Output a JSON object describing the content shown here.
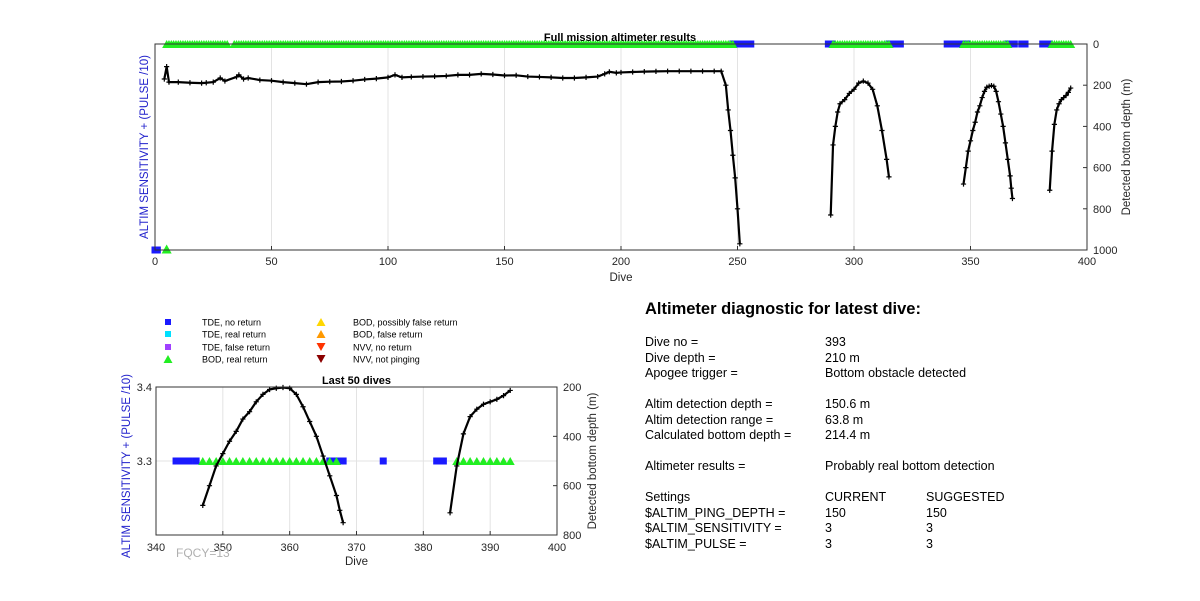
{
  "colors": {
    "tde_no_return": "#1a1aff",
    "tde_real_return": "#00e0ff",
    "tde_false_return": "#a040ff",
    "bod_real_return": "#22ee22",
    "bod_possibly_false_return": "#ffd700",
    "bod_false_return": "#ff9900",
    "nvv_no_return": "#ff3300",
    "nvv_not_pinging": "#8b0000",
    "depth_line": "#000000",
    "left_axis_label": "#2222cc"
  },
  "chart_data": [
    {
      "type": "scatter",
      "title": "Full mission altimeter results",
      "xlabel": "Dive",
      "ylabel_left": "ALTIM SENSITIVITY + (PULSE /10)",
      "ylabel_right": "Detected bottom depth (m)",
      "xlim": [
        0,
        400
      ],
      "ylim_right": [
        0,
        1000
      ],
      "right_axis_reversed": true,
      "x_ticks": [
        0,
        50,
        100,
        150,
        200,
        250,
        300,
        350,
        400
      ],
      "y_right_ticks": [
        0,
        200,
        400,
        600,
        800,
        1000
      ],
      "grid": "vertical",
      "series": [
        {
          "name": "Detected bottom depth",
          "style": "black line with + markers",
          "segments": [
            [
              [
                4,
                170
              ],
              [
                5,
                110
              ],
              [
                6,
                185
              ],
              [
                10,
                185
              ],
              [
                15,
                188
              ],
              [
                20,
                190
              ],
              [
                22,
                188
              ],
              [
                25,
                185
              ],
              [
                28,
                165
              ],
              [
                30,
                180
              ],
              [
                35,
                160
              ],
              [
                36,
                150
              ],
              [
                38,
                170
              ],
              [
                40,
                165
              ],
              [
                45,
                175
              ],
              [
                50,
                178
              ],
              [
                55,
                185
              ],
              [
                60,
                190
              ],
              [
                65,
                195
              ],
              [
                70,
                185
              ],
              [
                75,
                183
              ],
              [
                80,
                182
              ],
              [
                85,
                178
              ],
              [
                90,
                172
              ],
              [
                95,
                168
              ],
              [
                100,
                162
              ],
              [
                103,
                150
              ],
              [
                106,
                162
              ],
              [
                110,
                160
              ],
              [
                115,
                158
              ],
              [
                120,
                157
              ],
              [
                125,
                155
              ],
              [
                130,
                150
              ],
              [
                135,
                150
              ],
              [
                140,
                145
              ],
              [
                145,
                148
              ],
              [
                150,
                153
              ],
              [
                155,
                152
              ],
              [
                160,
                158
              ],
              [
                165,
                160
              ],
              [
                170,
                162
              ],
              [
                175,
                165
              ],
              [
                180,
                165
              ],
              [
                185,
                162
              ],
              [
                190,
                158
              ],
              [
                193,
                145
              ],
              [
                195,
                135
              ],
              [
                198,
                140
              ],
              [
                200,
                138
              ],
              [
                205,
                136
              ],
              [
                210,
                134
              ],
              [
                215,
                133
              ],
              [
                220,
                132
              ],
              [
                225,
                132
              ],
              [
                230,
                132
              ],
              [
                235,
                132
              ],
              [
                240,
                132
              ],
              [
                243,
                132
              ],
              [
                245,
                200
              ],
              [
                246,
                320
              ],
              [
                247,
                420
              ],
              [
                248,
                540
              ],
              [
                249,
                650
              ],
              [
                250,
                800
              ],
              [
                251,
                970
              ]
            ],
            [
              [
                290,
                830
              ],
              [
                291,
                490
              ],
              [
                292,
                400
              ],
              [
                293,
                330
              ],
              [
                294,
                290
              ],
              [
                296,
                270
              ],
              [
                298,
                240
              ],
              [
                300,
                220
              ],
              [
                302,
                190
              ],
              [
                304,
                180
              ],
              [
                306,
                190
              ],
              [
                308,
                220
              ],
              [
                310,
                300
              ],
              [
                312,
                420
              ],
              [
                314,
                560
              ],
              [
                315,
                645
              ]
            ],
            [
              [
                347,
                680
              ],
              [
                348,
                600
              ],
              [
                349,
                520
              ],
              [
                350,
                470
              ],
              [
                351,
                420
              ],
              [
                352,
                380
              ],
              [
                353,
                330
              ],
              [
                354,
                300
              ],
              [
                355,
                260
              ],
              [
                356,
                230
              ],
              [
                357,
                210
              ],
              [
                358,
                205
              ],
              [
                359,
                202
              ],
              [
                360,
                205
              ],
              [
                361,
                230
              ],
              [
                362,
                280
              ],
              [
                363,
                340
              ],
              [
                364,
                400
              ],
              [
                365,
                480
              ],
              [
                366,
                560
              ],
              [
                367,
                640
              ],
              [
                367.5,
                700
              ],
              [
                368,
                750
              ]
            ],
            [
              [
                384,
                710
              ],
              [
                385,
                520
              ],
              [
                386,
                390
              ],
              [
                387,
                320
              ],
              [
                388,
                290
              ],
              [
                389,
                270
              ],
              [
                390,
                260
              ],
              [
                391,
                250
              ],
              [
                392,
                235
              ],
              [
                393,
                214
              ]
            ]
          ]
        },
        {
          "name": "TDE, no return",
          "marker": "square",
          "color_key": "tde_no_return",
          "top_row_ranges": [
            [
              248,
              256
            ],
            [
              289,
              291
            ],
            [
              315,
              320
            ],
            [
              340,
              349
            ],
            [
              366,
              369
            ],
            [
              372,
              374
            ],
            [
              381,
              384
            ]
          ],
          "bottom_row_points": [
            0,
            1
          ]
        },
        {
          "name": "BOD, real return",
          "marker": "triangle-up",
          "color_key": "bod_real_return",
          "top_row_ranges": [
            [
              5,
              31
            ],
            [
              34,
              200
            ],
            [
              201,
              248
            ],
            [
              291,
              315
            ],
            [
              347,
              366
            ],
            [
              385,
              393
            ]
          ],
          "bottom_row_points": [
            5
          ]
        }
      ]
    },
    {
      "type": "scatter",
      "title": "Last 50 dives",
      "xlabel": "Dive",
      "ylabel_left": "ALTIM SENSITIVITY + (PULSE /10)",
      "ylabel_right": "Detected bottom depth (m)",
      "xlim": [
        340,
        400
      ],
      "ylim_left": [
        3.2,
        3.4
      ],
      "ylim_right": [
        200,
        800
      ],
      "right_axis_reversed": true,
      "x_ticks": [
        340,
        350,
        360,
        370,
        380,
        390,
        400
      ],
      "y_left_ticks": [
        3.3,
        3.4
      ],
      "y_right_ticks": [
        200,
        400,
        600,
        800
      ],
      "grid": "both",
      "series": [
        {
          "name": "Detected bottom depth",
          "style": "black line with + markers",
          "segments": [
            [
              [
                347,
                680
              ],
              [
                348,
                600
              ],
              [
                349,
                520
              ],
              [
                350,
                470
              ],
              [
                351,
                420
              ],
              [
                352,
                380
              ],
              [
                353,
                330
              ],
              [
                354,
                300
              ],
              [
                355,
                260
              ],
              [
                356,
                230
              ],
              [
                357,
                210
              ],
              [
                358,
                205
              ],
              [
                359,
                202
              ],
              [
                360,
                205
              ],
              [
                361,
                230
              ],
              [
                362,
                280
              ],
              [
                363,
                340
              ],
              [
                364,
                400
              ],
              [
                365,
                480
              ],
              [
                366,
                560
              ],
              [
                367,
                640
              ],
              [
                367.5,
                700
              ],
              [
                368,
                750
              ]
            ],
            [
              [
                384,
                710
              ],
              [
                385,
                520
              ],
              [
                386,
                390
              ],
              [
                387,
                320
              ],
              [
                388,
                290
              ],
              [
                389,
                270
              ],
              [
                390,
                260
              ],
              [
                391,
                250
              ],
              [
                392,
                235
              ],
              [
                393,
                214
              ]
            ]
          ]
        },
        {
          "name": "TDE, no return",
          "marker": "square",
          "color_key": "tde_no_return",
          "y_value": 3.3,
          "x_values": [
            343,
            344,
            345,
            346,
            366,
            367,
            368,
            374,
            382,
            383
          ]
        },
        {
          "name": "BOD, real return",
          "marker": "triangle-up",
          "color_key": "bod_real_return",
          "y_value": 3.3,
          "x_values": [
            347,
            348,
            349,
            350,
            351,
            352,
            353,
            354,
            355,
            356,
            357,
            358,
            359,
            360,
            361,
            362,
            363,
            364,
            365,
            366,
            367,
            385,
            386,
            387,
            388,
            389,
            390,
            391,
            392,
            393
          ]
        }
      ]
    }
  ],
  "legend": {
    "items": [
      {
        "label": "TDE, no return",
        "marker": "square",
        "color_key": "tde_no_return"
      },
      {
        "label": "TDE, real return",
        "marker": "square",
        "color_key": "tde_real_return"
      },
      {
        "label": "TDE, false return",
        "marker": "square",
        "color_key": "tde_false_return"
      },
      {
        "label": "BOD, real return",
        "marker": "triangle-up",
        "color_key": "bod_real_return"
      },
      {
        "label": "BOD, possibly false return",
        "marker": "triangle-up",
        "color_key": "bod_possibly_false_return"
      },
      {
        "label": "BOD, false return",
        "marker": "triangle-up",
        "color_key": "bod_false_return"
      },
      {
        "label": "NVV, no return",
        "marker": "triangle-down",
        "color_key": "nvv_no_return"
      },
      {
        "label": "NVV, not pinging",
        "marker": "triangle-down",
        "color_key": "nvv_not_pinging"
      }
    ]
  },
  "diagnostic": {
    "title": "Altimeter diagnostic for latest dive:",
    "dive_no_label": "Dive no =",
    "dive_no": "393",
    "dive_depth_label": "Dive depth =",
    "dive_depth": "210 m",
    "apogee_label": "Apogee trigger =",
    "apogee": "Bottom obstacle detected",
    "det_depth_label": "Altim detection depth =",
    "det_depth": "150.6 m",
    "det_range_label": "Altim detection range =",
    "det_range": "63.8 m",
    "calc_depth_label": "Calculated bottom depth =",
    "calc_depth": "214.4 m",
    "results_label": "Altimeter results =",
    "results": "Probably real bottom detection",
    "settings_label": "Settings",
    "current_label": "CURRENT",
    "suggested_label": "SUGGESTED",
    "ping_depth_label": "$ALTIM_PING_DEPTH =",
    "ping_depth_current": "150",
    "ping_depth_suggested": "150",
    "sensitivity_label": "$ALTIM_SENSITIVITY =",
    "sensitivity_current": "3",
    "sensitivity_suggested": "3",
    "pulse_label": "$ALTIM_PULSE =",
    "pulse_current": "3",
    "pulse_suggested": "3"
  },
  "footer": {
    "fqcy": "FQCY=13"
  }
}
